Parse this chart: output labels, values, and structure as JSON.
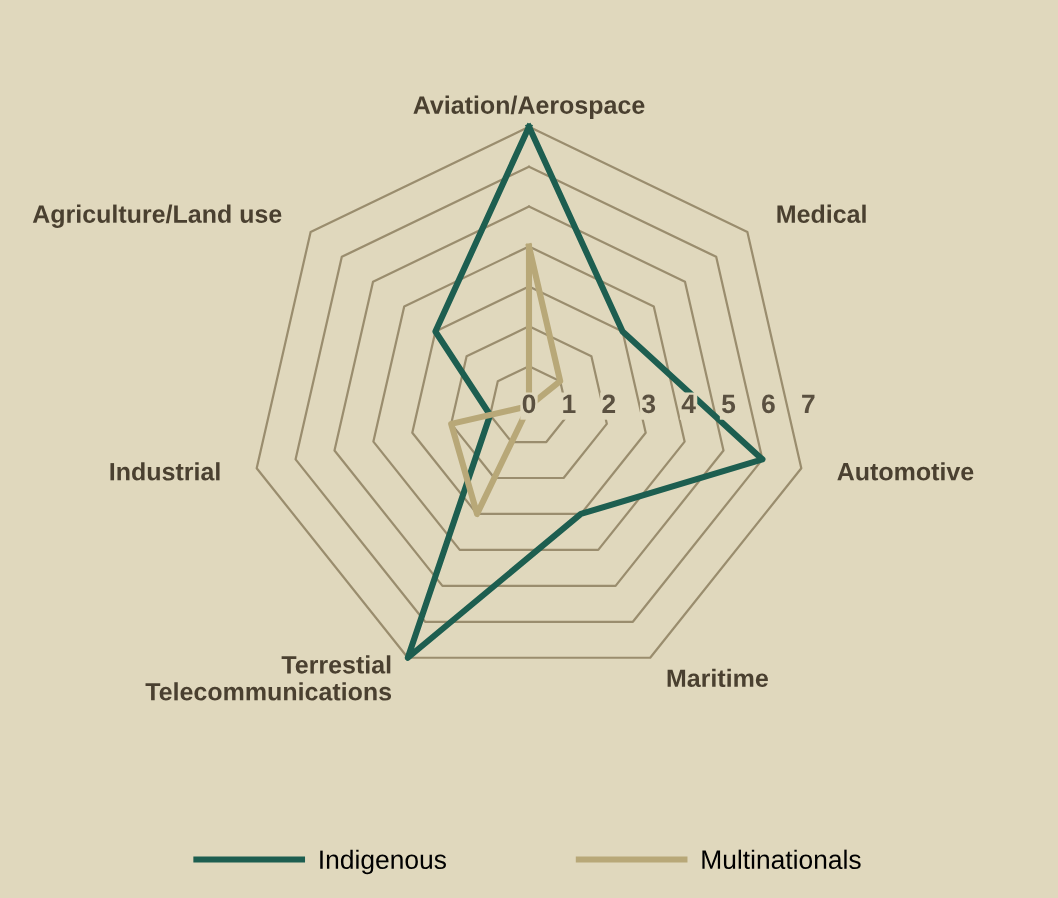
{
  "chart_data": {
    "type": "radar",
    "categories": [
      "Aviation/Aerospace",
      "Medical",
      "Automotive",
      "Maritime",
      "Terrestial\nTelecommunications",
      "Industrial",
      "Agriculture/Land use"
    ],
    "series": [
      {
        "name": "Indigenous",
        "color": "#1d5e50",
        "values": [
          7,
          3,
          6,
          3,
          7,
          1,
          3
        ]
      },
      {
        "name": "Multinationals",
        "color": "#b8a878",
        "values": [
          4,
          1,
          0,
          0,
          3,
          2,
          0
        ]
      }
    ],
    "ylim": [
      0,
      7
    ],
    "yticks": [
      0,
      1,
      2,
      3,
      4,
      5,
      6,
      7
    ],
    "grid": true,
    "legend": "bottom"
  }
}
